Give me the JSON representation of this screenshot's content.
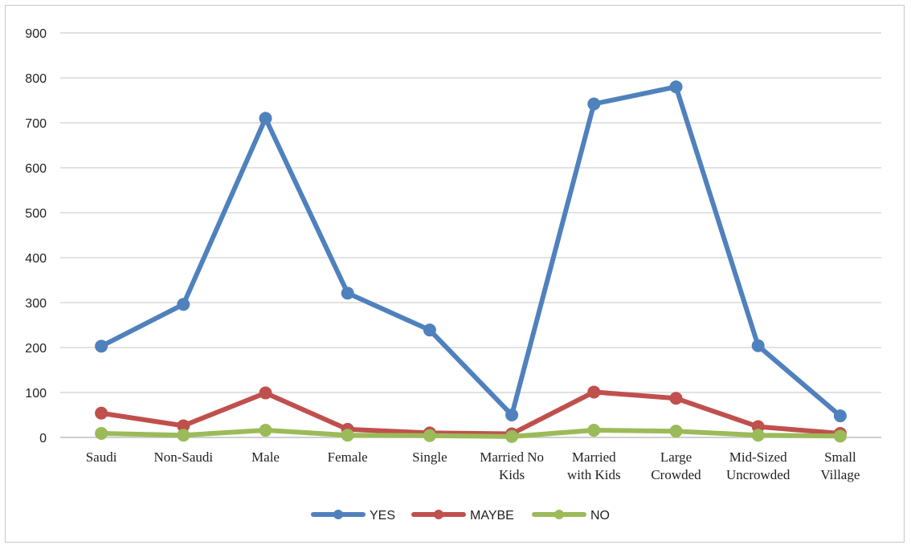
{
  "chart_data": {
    "type": "line",
    "title": "",
    "xlabel": "",
    "ylabel": "",
    "categories": [
      [
        "Saudi"
      ],
      [
        "Non-Saudi"
      ],
      [
        "Male"
      ],
      [
        "Female"
      ],
      [
        "Single"
      ],
      [
        "Married No",
        "Kids"
      ],
      [
        "Married",
        "with Kids"
      ],
      [
        "Large",
        "Crowded"
      ],
      [
        "Mid-Sized",
        "Uncrowded"
      ],
      [
        "Small",
        "Village"
      ]
    ],
    "ylim": [
      0,
      900
    ],
    "yticks": [
      0,
      100,
      200,
      300,
      400,
      500,
      600,
      700,
      800,
      900
    ],
    "grid": true,
    "legend_position": "bottom",
    "series": [
      {
        "name": "YES",
        "color": "#4f81bd",
        "values": [
          203,
          296,
          710,
          321,
          239,
          50,
          742,
          780,
          204,
          48
        ]
      },
      {
        "name": "MAYBE",
        "color": "#c0504d",
        "values": [
          54,
          26,
          99,
          18,
          10,
          8,
          101,
          87,
          24,
          9
        ]
      },
      {
        "name": "NO",
        "color": "#9bbb59",
        "values": [
          9,
          5,
          16,
          5,
          4,
          2,
          16,
          14,
          5,
          3
        ]
      }
    ]
  }
}
